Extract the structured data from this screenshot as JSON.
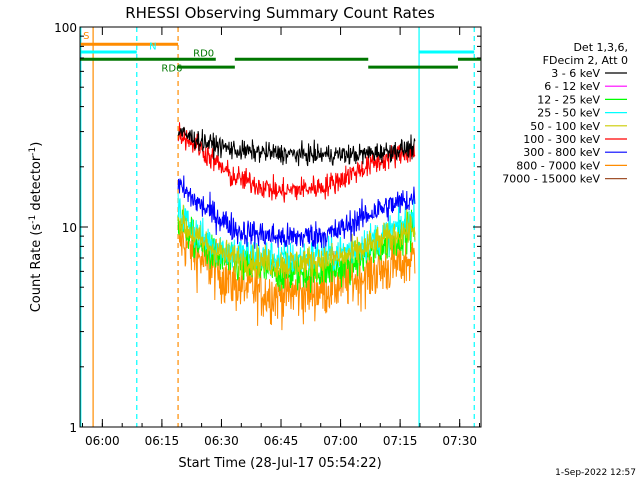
{
  "chart_data": {
    "type": "line",
    "title": "RHESSI Observing Summary Count Rates",
    "xlabel": "Start Time (28-Jul-17 05:54:22)",
    "ylabel_main": "Count Rate (s",
    "ylabel_sup": "-1",
    "ylabel_mid": " detector",
    "ylabel_end": ")",
    "yscale": "log",
    "ylim": [
      1,
      100
    ],
    "xlim_minutes": [
      0,
      101
    ],
    "x_tick_labels": [
      {
        "label": "06:00",
        "min": 5.63
      },
      {
        "label": "06:15",
        "min": 20.63
      },
      {
        "label": "06:30",
        "min": 35.63
      },
      {
        "label": "06:45",
        "min": 50.63
      },
      {
        "label": "07:00",
        "min": 65.63
      },
      {
        "label": "07:15",
        "min": 80.63
      },
      {
        "label": "07:30",
        "min": 95.63
      }
    ],
    "y_tick_labels": [
      {
        "label": "1",
        "value": 1
      },
      {
        "label": "10",
        "value": 10
      },
      {
        "label": "100",
        "value": 100
      }
    ],
    "legend_header": [
      "Det 1,3,6,",
      "FDecim 2, Att 0"
    ],
    "series": [
      {
        "name": "3 - 6 keV",
        "color": "#000000",
        "start": 24.7,
        "end": 84.4,
        "profile": [
          [
            24.7,
            30
          ],
          [
            30,
            27
          ],
          [
            40,
            24
          ],
          [
            55,
            23
          ],
          [
            70,
            23
          ],
          [
            78,
            24
          ],
          [
            84.4,
            25
          ]
        ],
        "noise": 0.05
      },
      {
        "name": "6 - 12 keV",
        "color": "#ff00ff",
        "start": 0,
        "end": 0,
        "profile": [],
        "noise": 0
      },
      {
        "name": "12 - 25 keV",
        "color": "#00ff00",
        "start": 24.7,
        "end": 84.4,
        "profile": [
          [
            24.7,
            11
          ],
          [
            30,
            8
          ],
          [
            38,
            6.5
          ],
          [
            52,
            5.8
          ],
          [
            66,
            6.2
          ],
          [
            76,
            8
          ],
          [
            84.4,
            10
          ]
        ],
        "noise": 0.09
      },
      {
        "name": "25 - 50 keV",
        "color": "#00ffff",
        "start": 24.7,
        "end": 84.4,
        "profile": [
          [
            24.7,
            12
          ],
          [
            30,
            9
          ],
          [
            38,
            7.5
          ],
          [
            52,
            6.8
          ],
          [
            66,
            7.5
          ],
          [
            76,
            9
          ],
          [
            84.4,
            11
          ]
        ],
        "noise": 0.09
      },
      {
        "name": "50 - 100 keV",
        "color": "#cccc00",
        "start": 24.7,
        "end": 84.4,
        "profile": [
          [
            24.7,
            11
          ],
          [
            30,
            8.5
          ],
          [
            38,
            7
          ],
          [
            52,
            6.5
          ],
          [
            66,
            7
          ],
          [
            76,
            8.5
          ],
          [
            84.4,
            10
          ]
        ],
        "noise": 0.08
      },
      {
        "name": "100 - 300 keV",
        "color": "#ff0000",
        "start": 24.7,
        "end": 84.4,
        "profile": [
          [
            24.7,
            30
          ],
          [
            30,
            25
          ],
          [
            38,
            18
          ],
          [
            50,
            15
          ],
          [
            62,
            16
          ],
          [
            72,
            20
          ],
          [
            80,
            23
          ],
          [
            84.4,
            24
          ]
        ],
        "noise": 0.06
      },
      {
        "name": "300 - 800 keV",
        "color": "#0000ff",
        "start": 24.7,
        "end": 84.4,
        "profile": [
          [
            24.7,
            16
          ],
          [
            30,
            13
          ],
          [
            40,
            9.5
          ],
          [
            52,
            8.8
          ],
          [
            64,
            9.3
          ],
          [
            74,
            12
          ],
          [
            84.4,
            14
          ]
        ],
        "noise": 0.07
      },
      {
        "name": "800 - 7000 keV",
        "color": "#ff8c00",
        "start": 24.7,
        "end": 84.4,
        "profile": [
          [
            24.7,
            9
          ],
          [
            30,
            7
          ],
          [
            38,
            5.3
          ],
          [
            48,
            4.6
          ],
          [
            60,
            4.8
          ],
          [
            70,
            5.6
          ],
          [
            78,
            6.3
          ],
          [
            84.4,
            7
          ]
        ],
        "noise": 0.14
      },
      {
        "name": "7000 - 15000 keV",
        "color": "#a0522d",
        "start": 0,
        "end": 0,
        "profile": [],
        "noise": 0
      }
    ],
    "vertical_lines": [
      {
        "min": 0.2,
        "color": "#00ffff",
        "style": "solid"
      },
      {
        "min": 3.3,
        "color": "#ff8c00",
        "style": "solid"
      },
      {
        "min": 14.3,
        "color": "#00ffff",
        "style": "dashed"
      },
      {
        "min": 24.7,
        "color": "#ff8c00",
        "style": "dashed"
      },
      {
        "min": 85.4,
        "color": "#00ffff",
        "style": "solid"
      },
      {
        "min": 99.3,
        "color": "#00ffff",
        "style": "dashed"
      }
    ],
    "flag_bars": [
      {
        "label": "S",
        "color": "#ff8c00",
        "start": 0.2,
        "end": 24.7,
        "value": 82
      },
      {
        "label": "N",
        "color": "#00ffff",
        "start": 0.2,
        "end": 14.3,
        "value": 75
      },
      {
        "label": "N",
        "color": "#00ffff",
        "start": 85.4,
        "end": 99.3,
        "value": 75
      },
      {
        "label": "RD0",
        "color": "#007700",
        "start": 0,
        "end": 24.7,
        "value": 69
      },
      {
        "label": "RD0",
        "color": "#007700",
        "start": 24.7,
        "end": 34.2,
        "value": 69
      },
      {
        "label": "RD0",
        "color": "#007700",
        "start": 39,
        "end": 72.6,
        "value": 69
      },
      {
        "label": "RD0",
        "color": "#007700",
        "start": 95.2,
        "end": 101,
        "value": 69
      },
      {
        "label": "RD6",
        "color": "#007700",
        "start": 24.7,
        "end": 39,
        "value": 63
      },
      {
        "label": "RD6",
        "color": "#007700",
        "start": 72.6,
        "end": 95.2,
        "value": 63
      }
    ],
    "flag_labels": [
      {
        "text": "S",
        "color": "#ff8c00",
        "min": 0.8,
        "value": 87
      },
      {
        "text": "N",
        "color": "#00ffff",
        "min": 17.4,
        "value": 77
      },
      {
        "text": "RD0",
        "color": "#007700",
        "min": 28.5,
        "value": 71
      },
      {
        "text": "RD6",
        "color": "#007700",
        "min": 20.5,
        "value": 60
      }
    ]
  },
  "footer": {
    "date": "1-Sep-2022 12:57"
  }
}
